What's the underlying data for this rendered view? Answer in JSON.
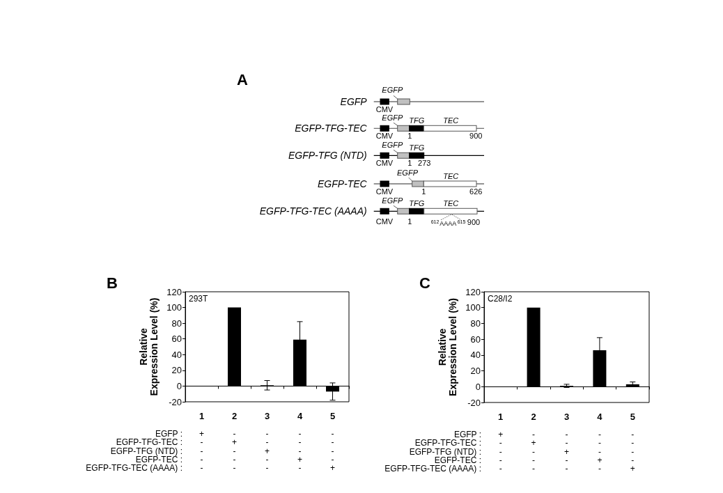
{
  "chart_data": [
    {
      "type": "other",
      "title": "A",
      "annotations": [
        "EGFP",
        "EGFP",
        "CMV",
        "EGFP-TFG-TEC",
        "EGFP",
        "TFG",
        "TEC",
        "CMV",
        "1",
        "900",
        "EGFP-TFG (NTD)",
        "EGFP",
        "TFG",
        "CMV",
        "1",
        "273",
        "EGFP-TEC",
        "EGFP",
        "TEC",
        "CMV",
        "1",
        "626",
        "EGFP-TFG-TEC (AAAA)",
        "EGFP",
        "TFG",
        "TEC",
        "CMV",
        "1",
        "612",
        "AAAA",
        "615",
        "900"
      ]
    },
    {
      "type": "bar",
      "title": "B",
      "categories": [
        "1",
        "2",
        "3",
        "4",
        "5"
      ],
      "values": [
        0,
        100,
        1,
        59,
        -7
      ],
      "errors": [
        null,
        null,
        6,
        23,
        11
      ],
      "color": "#000000",
      "ylabel": "Relative\nExpression Level (%)",
      "ylim": [
        -20,
        120
      ],
      "yticks": [
        -20,
        0,
        20,
        40,
        60,
        80,
        100,
        120
      ],
      "annotations": [
        "293T",
        "EGFP :",
        "+",
        "-",
        "-",
        "-",
        "-",
        "EGFP-TFG-TEC :",
        "-",
        "+",
        "-",
        "-",
        "-",
        "EGFP-TFG (NTD) :",
        "-",
        "-",
        "+",
        "-",
        "-",
        "EGFP-TEC :",
        "-",
        "-",
        "-",
        "+",
        "-",
        "EGFP-TFG-TEC (AAAA) :",
        "-",
        "-",
        "-",
        "-",
        "+"
      ]
    },
    {
      "type": "bar",
      "title": "C",
      "categories": [
        "1",
        "2",
        "3",
        "4",
        "5"
      ],
      "values": [
        0,
        100,
        1,
        46,
        3
      ],
      "errors": [
        null,
        null,
        2,
        16,
        3
      ],
      "color": "#000000",
      "ylabel": "Relative\nExpression Level (%)",
      "ylim": [
        -20,
        120
      ],
      "yticks": [
        -20,
        0,
        20,
        40,
        60,
        80,
        100,
        120
      ],
      "annotations": [
        "C28/I2",
        "EGFP :",
        "+",
        "-",
        "-",
        "-",
        "-",
        "EGFP-TFG-TEC :",
        "-",
        "+",
        "-",
        "-",
        "-",
        "EGFP-TFG (NTD) :",
        "-",
        "-",
        "+",
        "-",
        "-",
        "EGFP-TEC :",
        "-",
        "-",
        "-",
        "+",
        "-",
        "EGFP-TFG-TEC (AAAA) :",
        "-",
        "-",
        "-",
        "-",
        "+"
      ]
    }
  ]
}
